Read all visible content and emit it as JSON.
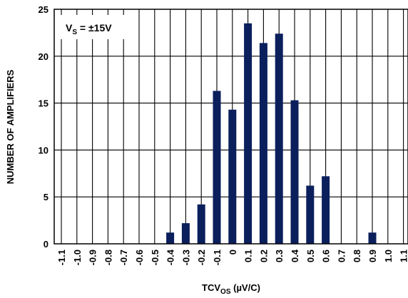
{
  "chart_data": {
    "type": "bar",
    "x_ticks": [
      "-1.1",
      "-1.0",
      "-0.9",
      "-0.8",
      "-0.7",
      "-0.6",
      "-0.5",
      "-0.4",
      "-0.3",
      "-0.2",
      "-0.1",
      "0",
      "0.1",
      "0.2",
      "0.3",
      "0.4",
      "0.5",
      "0.6",
      "0.7",
      "0.8",
      "0.9",
      "1.0",
      "1.1"
    ],
    "categories": [
      "-0.4",
      "-0.3",
      "-0.2",
      "-0.1",
      "0",
      "0.1",
      "0.2",
      "0.3",
      "0.4",
      "0.5",
      "0.6",
      "0.9"
    ],
    "values": [
      1.2,
      2.2,
      4.2,
      16.3,
      14.3,
      23.5,
      21.4,
      22.4,
      15.3,
      6.2,
      7.2,
      1.2
    ],
    "xlabel": {
      "main": "TCV",
      "sub": "OS",
      "tail": " (µV/C)"
    },
    "ylabel": "NUMBER OF AMPLIFIERS",
    "ylim": [
      0,
      25
    ],
    "y_ticks": [
      0,
      5,
      10,
      15,
      20,
      25
    ],
    "grid": true,
    "bar_color": "#0b1f5c",
    "annotation": {
      "main": "V",
      "sub": "S",
      "tail": " = ±15V"
    }
  }
}
